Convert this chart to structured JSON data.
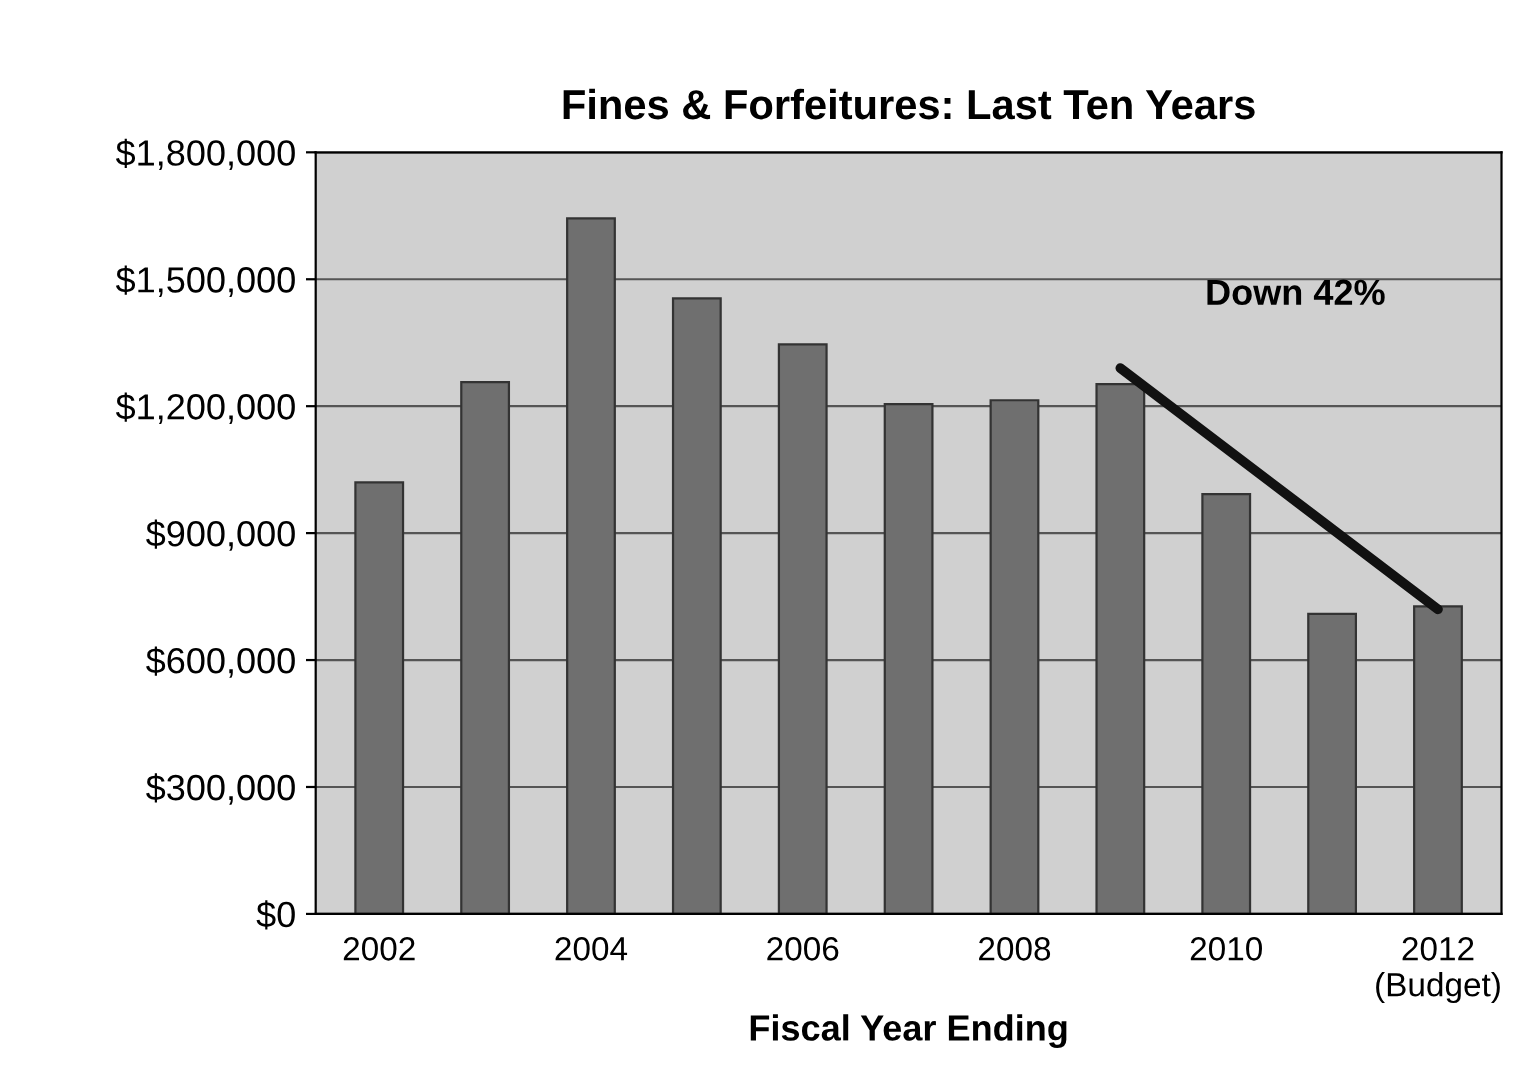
{
  "chart_data": {
    "type": "bar",
    "title": "Fines & Forfeitures: Last Ten Years",
    "xlabel": "Fiscal Year Ending",
    "categories": [
      "2002",
      null,
      "2004",
      null,
      "2006",
      null,
      "2008",
      null,
      "2010",
      null,
      "2012\n(Budget)"
    ],
    "series": [
      {
        "color": "#6f6f6f",
        "values": [
          1020000,
          1257000,
          1644000,
          1455000,
          1346000,
          1205000,
          1214000,
          1252000,
          992000,
          709000,
          727000
        ]
      },
      {
        "type": "line",
        "color": "#111111",
        "values": [
          null,
          null,
          null,
          null,
          null,
          null,
          null,
          1290000,
          null,
          null,
          720000
        ]
      }
    ],
    "annotations": [
      "Down 42%"
    ],
    "ylim": [
      0,
      1800000
    ],
    "yticks": [
      {
        "value": 0,
        "label": "$0"
      },
      {
        "value": 300000,
        "label": "$300,000"
      },
      {
        "value": 600000,
        "label": "$600,000"
      },
      {
        "value": 900000,
        "label": "$900,000"
      },
      {
        "value": 1200000,
        "label": "$1,200,000"
      },
      {
        "value": 1500000,
        "label": "$1,500,000"
      },
      {
        "value": 1800000,
        "label": "$1,800,000"
      }
    ],
    "grid": "y"
  }
}
